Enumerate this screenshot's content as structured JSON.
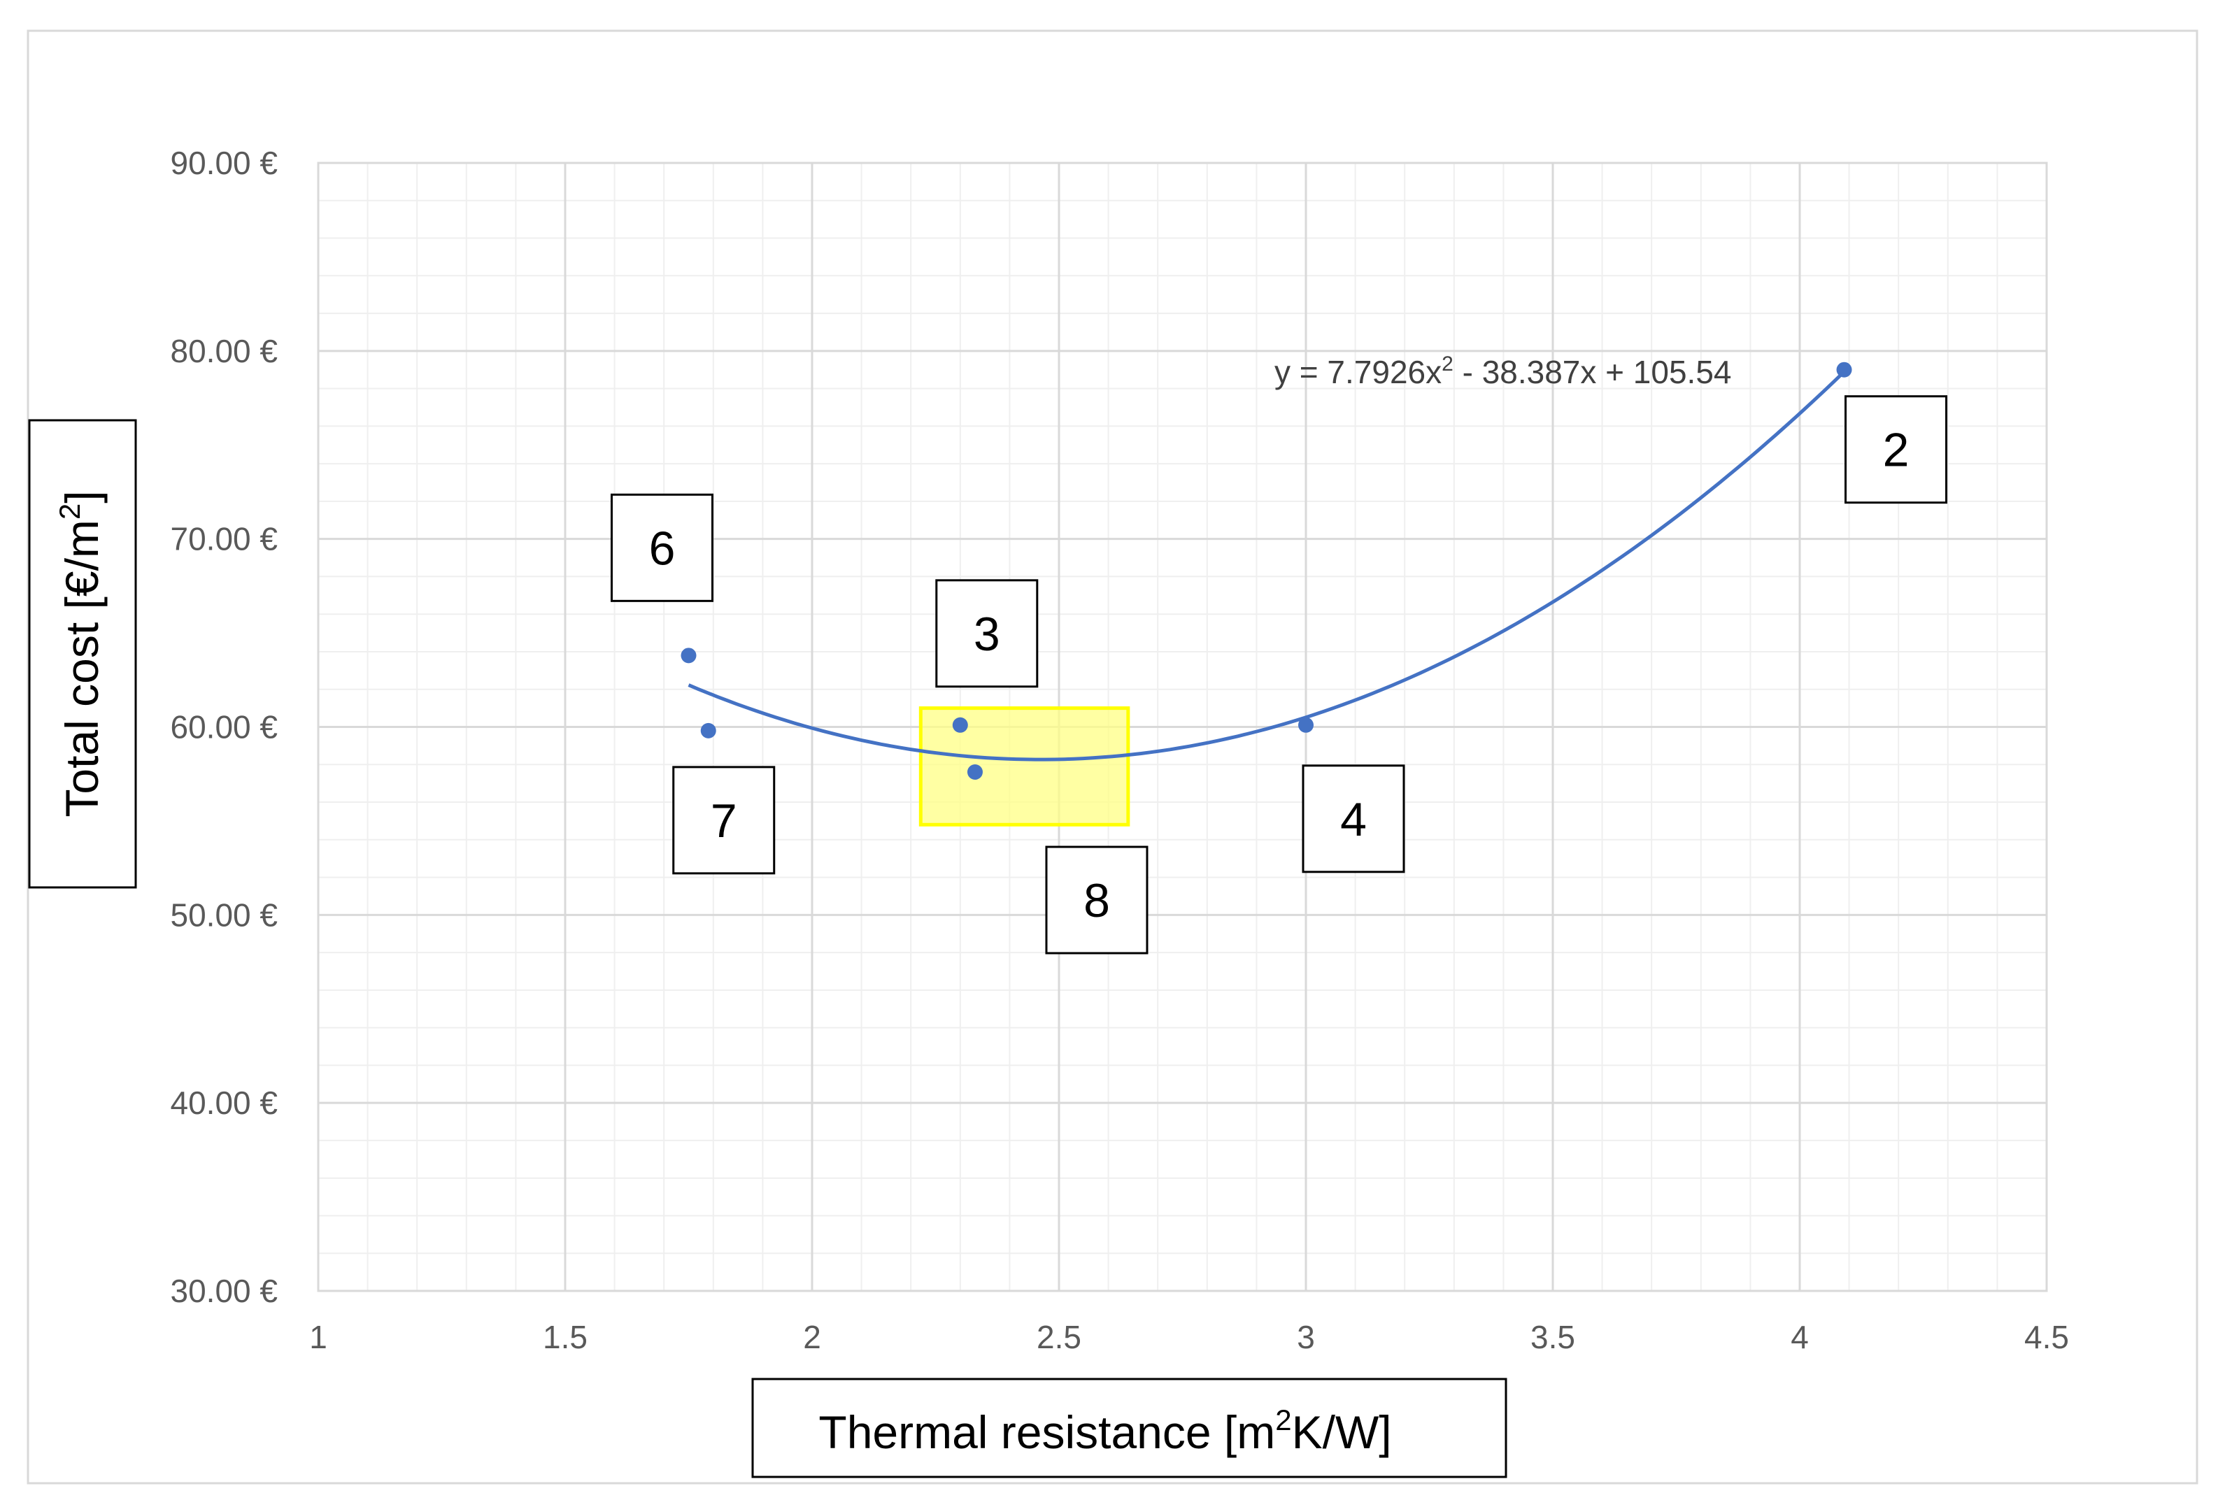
{
  "chart_data": {
    "type": "scatter",
    "title": "",
    "xlabel": "Thermal resistance [m2K/W]",
    "ylabel": "Total cost [€/m2]",
    "xlim": [
      1,
      4.5
    ],
    "ylim": [
      30,
      90
    ],
    "x_ticks": [
      "1",
      "1.5",
      "2",
      "2.5",
      "3",
      "3.5",
      "4",
      "4.5"
    ],
    "y_ticks": [
      "30.00 €",
      "40.00 €",
      "50.00 €",
      "60.00 €",
      "70.00 €",
      "80.00 €",
      "90.00 €"
    ],
    "grid": true,
    "points": [
      {
        "label": "6",
        "x": 1.75,
        "y": 63.8
      },
      {
        "label": "7",
        "x": 1.79,
        "y": 59.8
      },
      {
        "label": "3",
        "x": 2.3,
        "y": 60.1
      },
      {
        "label": "8",
        "x": 2.33,
        "y": 57.6
      },
      {
        "label": "4",
        "x": 3.0,
        "y": 60.1
      },
      {
        "label": "2",
        "x": 4.09,
        "y": 79.0
      }
    ],
    "trendline": {
      "type": "polynomial",
      "equation": "y = 7.7926x2 - 38.387x + 105.54",
      "coefficients": {
        "a": 7.7926,
        "b": -38.387,
        "c": 105.54
      },
      "x_range": [
        1.75,
        4.09
      ],
      "color": "#4472C4"
    },
    "highlight": {
      "x_range": [
        2.22,
        2.64
      ],
      "y_range": [
        54.8,
        61.0
      ],
      "color": "#FFFF80",
      "border": "#FFFF00"
    },
    "marker_color": "#4472C4",
    "grid_color": "#D9D9D9"
  }
}
